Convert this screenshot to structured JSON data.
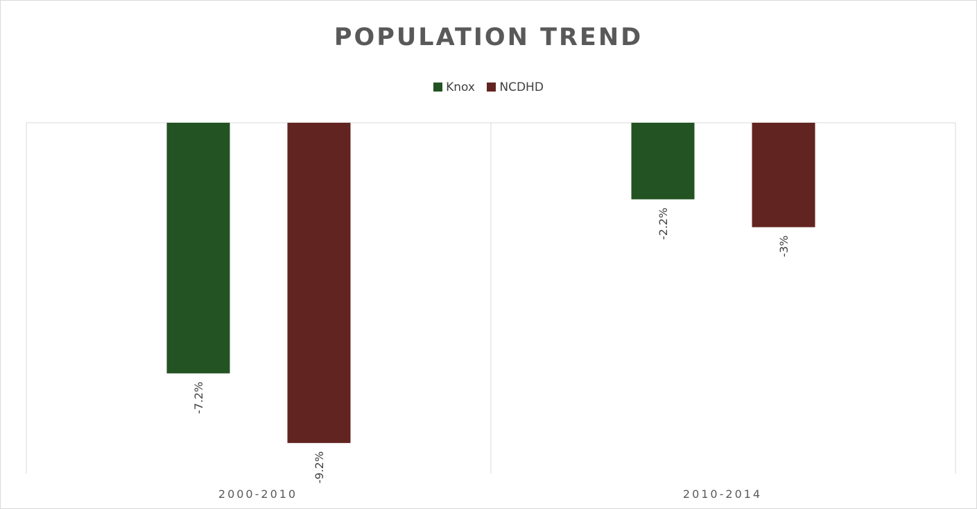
{
  "chart_data": {
    "type": "bar",
    "title": "POPULATION TREND",
    "categories": [
      "2000-2010",
      "2010-2014"
    ],
    "series": [
      {
        "name": "Knox",
        "color": "#235322",
        "values": [
          -7.2,
          -2.2
        ],
        "labels": [
          "-7.2%",
          "-2.2%"
        ]
      },
      {
        "name": "NCDHD",
        "color": "#622420",
        "values": [
          -9.2,
          -3
        ],
        "labels": [
          "-9.2%",
          "-3%"
        ]
      }
    ],
    "ylim": [
      -10,
      0
    ],
    "legend_position": "top",
    "grid": false,
    "data_labels_rotated": true
  }
}
